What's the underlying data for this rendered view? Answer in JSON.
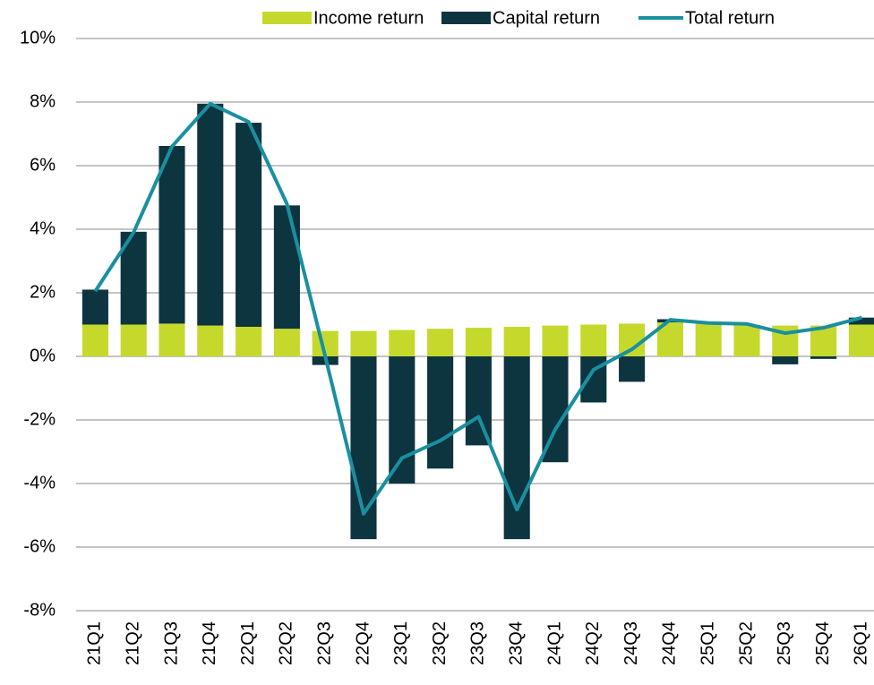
{
  "chart_data": {
    "type": "stacked_bar_line",
    "categories": [
      "21Q1",
      "21Q2",
      "21Q3",
      "21Q4",
      "22Q1",
      "22Q2",
      "22Q3",
      "22Q4",
      "23Q1",
      "23Q2",
      "23Q3",
      "23Q4",
      "24Q1",
      "24Q2",
      "24Q3",
      "24Q4",
      "25Q1",
      "25Q2",
      "25Q3",
      "25Q4",
      "26Q1"
    ],
    "series": [
      {
        "name": "Income return",
        "type": "bar",
        "color": "#c5d92d",
        "values": [
          1.0,
          1.0,
          1.03,
          0.97,
          0.93,
          0.87,
          0.8,
          0.8,
          0.83,
          0.87,
          0.9,
          0.93,
          0.97,
          1.0,
          1.03,
          1.07,
          1.05,
          1.0,
          0.97,
          0.97,
          1.0
        ]
      },
      {
        "name": "Capital return",
        "type": "bar",
        "color": "#0d3540",
        "values": [
          1.1,
          2.92,
          5.59,
          6.98,
          6.42,
          3.88,
          -0.27,
          -5.75,
          -4.0,
          -3.53,
          -2.8,
          -5.75,
          -3.33,
          -1.45,
          -0.8,
          0.1,
          0.0,
          0.0,
          -0.25,
          -0.08,
          0.22
        ]
      },
      {
        "name": "Total return",
        "type": "line",
        "color": "#1a8fa0",
        "values": [
          2.05,
          3.9,
          6.6,
          7.95,
          7.38,
          4.8,
          0.0,
          -4.95,
          -3.2,
          -2.65,
          -1.9,
          -4.82,
          -2.3,
          -0.42,
          0.22,
          1.15,
          1.05,
          1.02,
          0.73,
          0.9,
          1.22
        ]
      }
    ],
    "ylim": [
      -8,
      10
    ],
    "yticks": [
      {
        "value": -8,
        "label": "-8%"
      },
      {
        "value": -6,
        "label": "-6%"
      },
      {
        "value": -4,
        "label": "-4%"
      },
      {
        "value": -2,
        "label": "-2%"
      },
      {
        "value": 0,
        "label": "0%"
      },
      {
        "value": 2,
        "label": "2%"
      },
      {
        "value": 4,
        "label": "4%"
      },
      {
        "value": 6,
        "label": "6%"
      },
      {
        "value": 8,
        "label": "8%"
      },
      {
        "value": 10,
        "label": "10%"
      }
    ],
    "grid": true,
    "legend": "top-right"
  }
}
